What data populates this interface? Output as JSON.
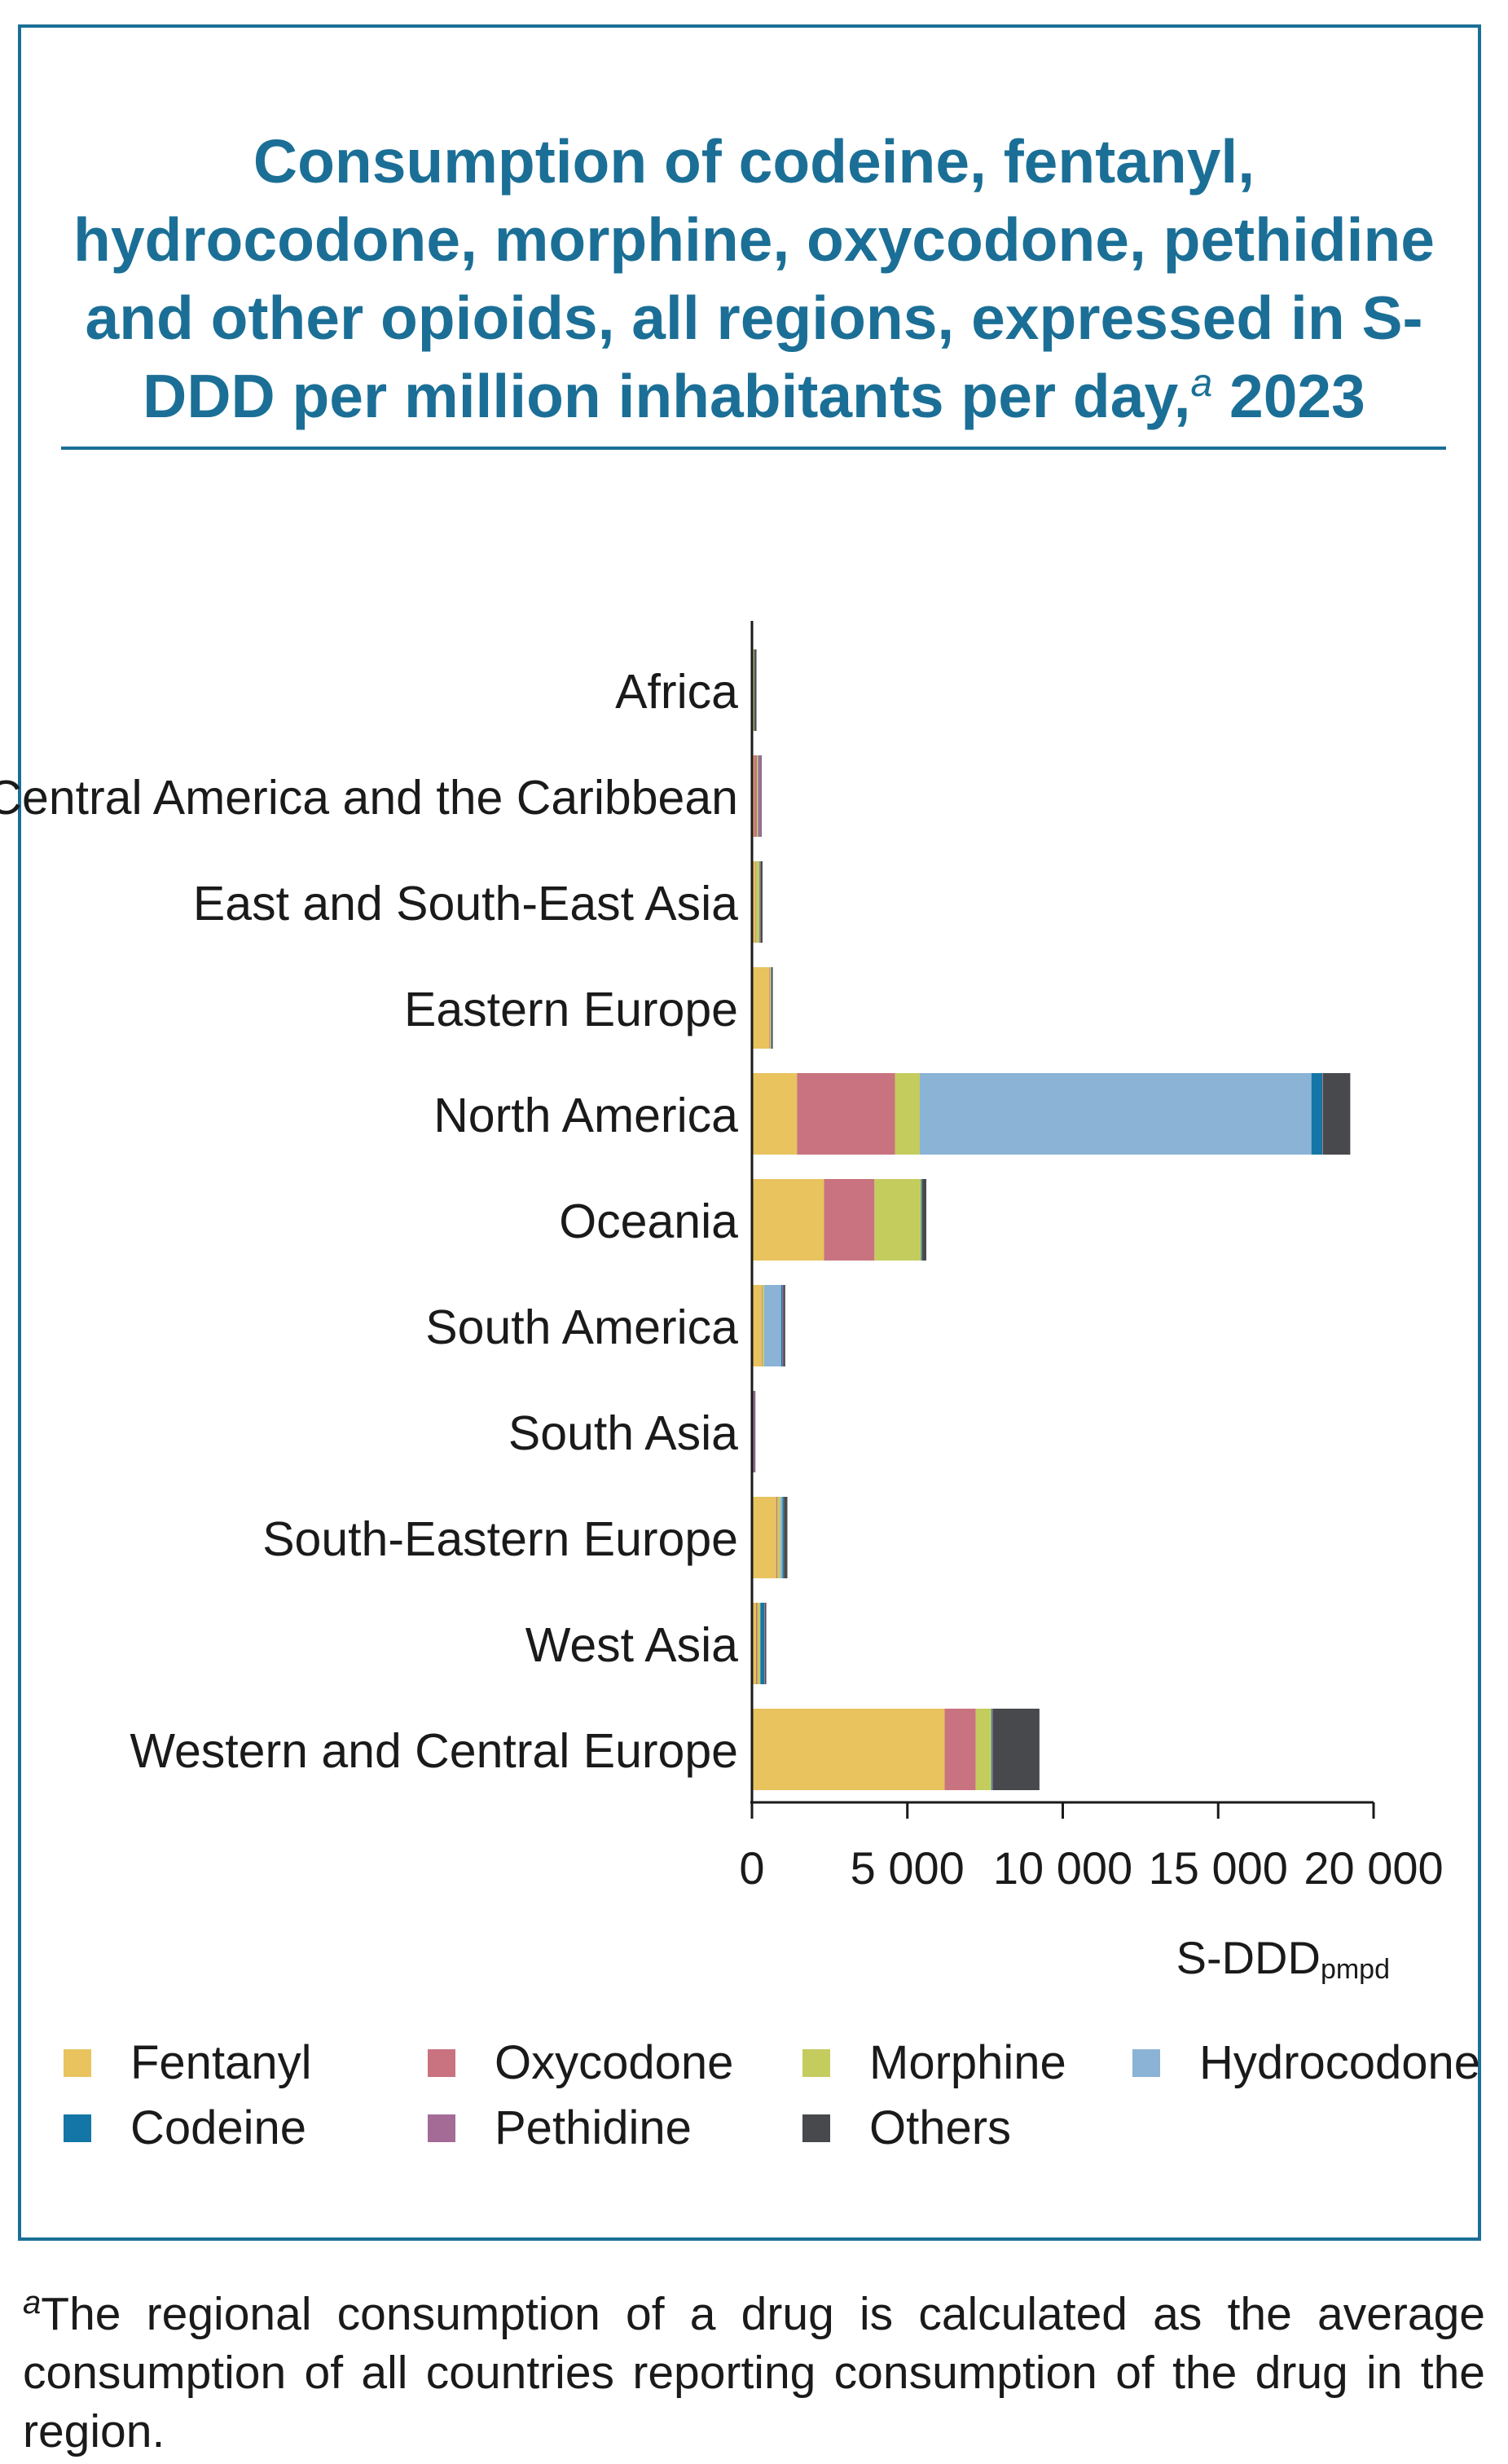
{
  "title_main": "Consumption of codeine, fentanyl, hydrocodone, morphine, oxycodone, pethidine and other opioids, all regions, expressed in S-DDD per million inhabitants per day,",
  "title_sup": "a",
  "title_year": " 2023",
  "footnote_sup": "a",
  "footnote_text": "The regional consumption of a drug is calculated as the average consumption of all countries reporting consumption of the drug in the region.",
  "chart_data": {
    "type": "bar",
    "orientation": "horizontal",
    "stacked": true,
    "categories": [
      "Africa",
      "Central America and the Caribbean",
      "East and South-East Asia",
      "Eastern Europe",
      "North America",
      "Oceania",
      "South America",
      "South Asia",
      "South-Eastern Europe",
      "West Asia",
      "Western and Central Europe"
    ],
    "series": [
      {
        "name": "Fentanyl",
        "color": "#e8c35e",
        "values": [
          20,
          60,
          100,
          560,
          1450,
          2320,
          310,
          15,
          780,
          130,
          6200
        ]
      },
      {
        "name": "Oxycodone",
        "color": "#c8737f",
        "values": [
          5,
          100,
          20,
          20,
          3150,
          1620,
          20,
          5,
          40,
          40,
          1000
        ]
      },
      {
        "name": "Morphine",
        "color": "#c5cc5e",
        "values": [
          40,
          40,
          120,
          30,
          800,
          1500,
          60,
          15,
          100,
          100,
          500
        ]
      },
      {
        "name": "Hydrocodone",
        "color": "#8ab3d6",
        "values": [
          0,
          0,
          0,
          0,
          12600,
          0,
          550,
          0,
          60,
          0,
          0
        ]
      },
      {
        "name": "Codeine",
        "color": "#1376a6",
        "values": [
          10,
          10,
          10,
          10,
          350,
          30,
          40,
          5,
          40,
          130,
          30
        ]
      },
      {
        "name": "Pethidine",
        "color": "#a36b96",
        "values": [
          10,
          80,
          30,
          10,
          20,
          10,
          30,
          50,
          10,
          20,
          20
        ]
      },
      {
        "name": "Others",
        "color": "#48494c",
        "values": [
          60,
          20,
          60,
          40,
          880,
          130,
          60,
          20,
          110,
          40,
          1500
        ]
      }
    ],
    "x_ticks": [
      0,
      5000,
      10000,
      15000,
      20000
    ],
    "x_tick_labels": [
      "0",
      "5 000",
      "10 000",
      "15 000",
      "20 000"
    ],
    "xlim": [
      0,
      20000
    ],
    "xlabel_main": "S-DDD",
    "xlabel_sub": "pmpd",
    "legend_placement": "bottom",
    "grid": false
  }
}
